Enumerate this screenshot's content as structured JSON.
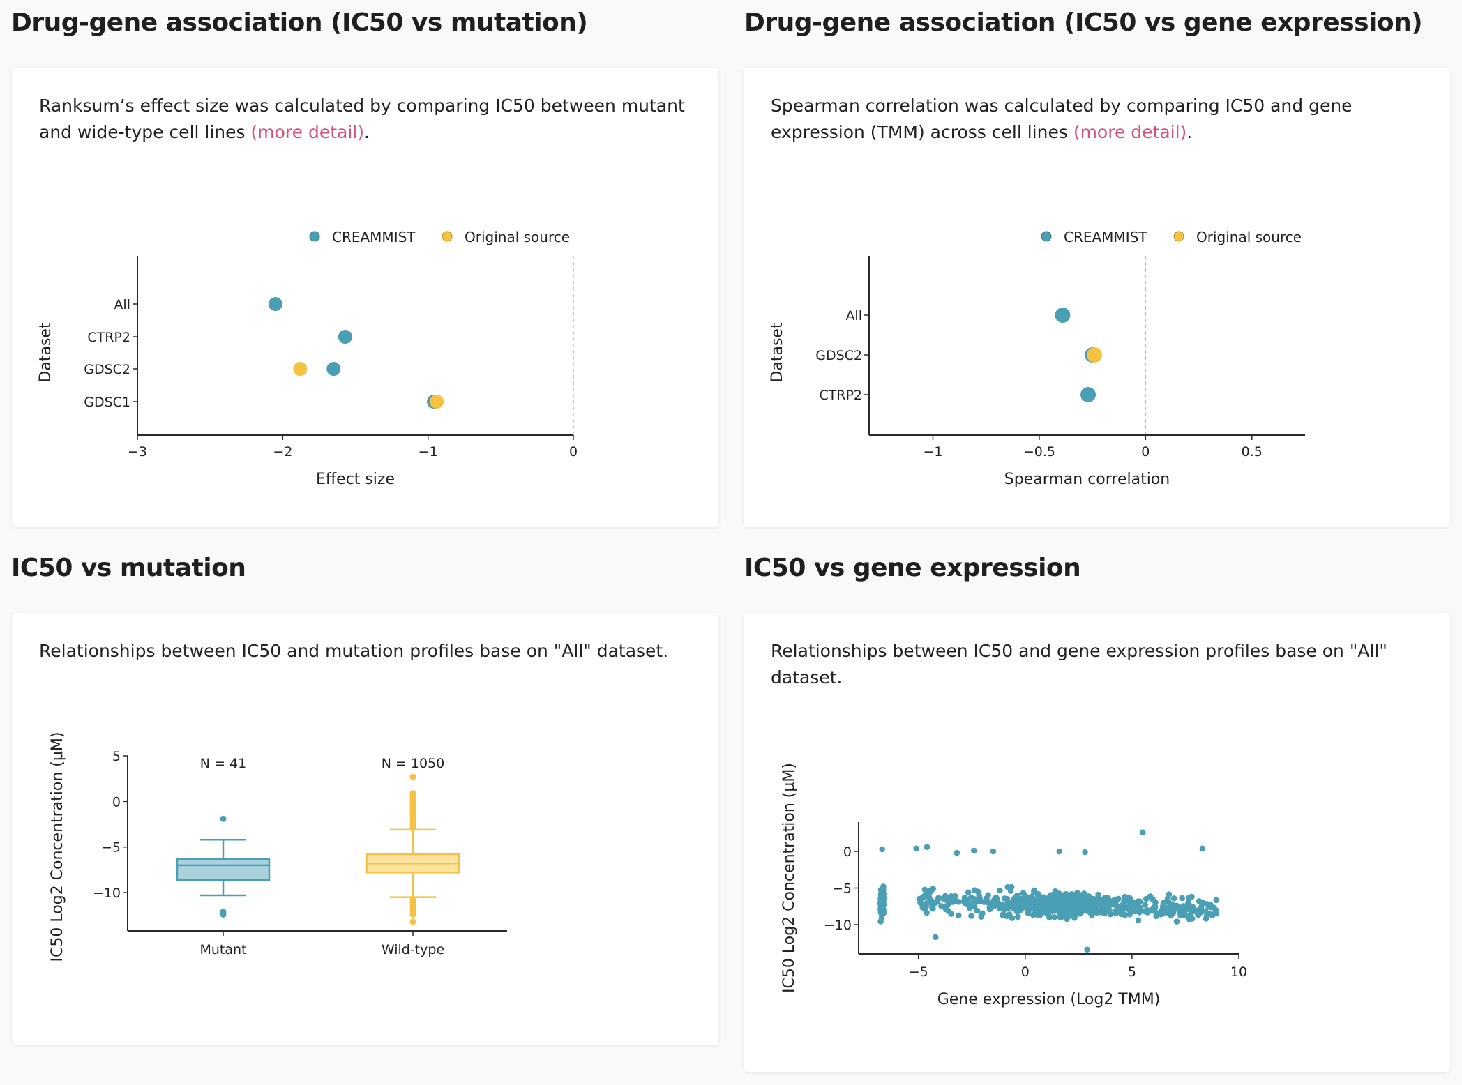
{
  "sections": {
    "tl_title": "Drug-gene association (IC50 vs mutation)",
    "tr_title": "Drug-gene association (IC50 vs gene expression)",
    "bl_title": "IC50 vs mutation",
    "br_title": "IC50 vs gene expression"
  },
  "descriptions": {
    "tl_text": "Ranksum’s effect size was calculated by comparing IC50 between mutant and wide-type cell lines ",
    "tl_link": "(more detail)",
    "tl_end": ".",
    "tr_text": "Spearman correlation was calculated by comparing IC50 and gene expression (TMM) across cell lines ",
    "tr_link": "(more detail)",
    "tr_end": ".",
    "bl_text": "Relationships between IC50 and mutation profiles base on \"All\" dataset.",
    "br_text": "Relationships between IC50 and gene expression profiles base on \"All\" dataset."
  },
  "colors": {
    "creammist": "#4a9fb5",
    "original": "#f5c242",
    "link": "#d9507a"
  },
  "chart_data": [
    {
      "id": "effect",
      "type": "scatter",
      "xlabel": "Effect size",
      "ylabel": "Dataset",
      "legend": [
        "CREAMMIST",
        "Original source"
      ],
      "categories": [
        "All",
        "CTRP2",
        "GDSC2",
        "GDSC1"
      ],
      "xlim": [
        -3,
        0
      ],
      "xticks": [
        -3,
        -2,
        -1,
        0
      ],
      "xtick_labels": [
        "−3",
        "−2",
        "−1",
        "0"
      ],
      "series": [
        {
          "name": "CREAMMIST",
          "points": [
            {
              "cat": "All",
              "x": -2.05
            },
            {
              "cat": "CTRP2",
              "x": -1.57
            },
            {
              "cat": "GDSC2",
              "x": -1.65
            },
            {
              "cat": "GDSC1",
              "x": -0.96
            }
          ]
        },
        {
          "name": "Original source",
          "points": [
            {
              "cat": "GDSC2",
              "x": -1.88
            },
            {
              "cat": "GDSC1",
              "x": -0.94
            }
          ]
        }
      ]
    },
    {
      "id": "spearman",
      "type": "scatter",
      "xlabel": "Spearman correlation",
      "ylabel": "Dataset",
      "legend": [
        "CREAMMIST",
        "Original source"
      ],
      "categories": [
        "All",
        "GDSC2",
        "CTRP2"
      ],
      "xlim": [
        -1.3,
        0.75
      ],
      "xticks": [
        -1,
        -0.5,
        0,
        0.5
      ],
      "xtick_labels": [
        "−1",
        "−0.5",
        "0",
        "0.5"
      ],
      "series": [
        {
          "name": "CREAMMIST",
          "points": [
            {
              "cat": "All",
              "x": -0.39
            },
            {
              "cat": "GDSC2",
              "x": -0.25
            },
            {
              "cat": "CTRP2",
              "x": -0.27
            }
          ]
        },
        {
          "name": "Original source",
          "points": [
            {
              "cat": "GDSC2",
              "x": -0.24
            }
          ]
        }
      ]
    },
    {
      "id": "boxplot",
      "type": "box",
      "ylabel": "IC50 Log2 Concentration (μM)",
      "ylim": [
        -14.2,
        5
      ],
      "yticks": [
        5,
        0,
        -5,
        -10
      ],
      "ytick_labels": [
        "5",
        "0",
        "−5",
        "−10"
      ],
      "boxes": [
        {
          "name": "Mutant",
          "n_label": "N = 41",
          "q1": -8.6,
          "median": -7.0,
          "q3": -6.3,
          "whisker_low": -10.3,
          "whisker_high": -4.2,
          "outliers": [
            -1.9,
            -12.1,
            -12.4
          ]
        },
        {
          "name": "Wild-type",
          "n_label": "N = 1050",
          "q1": -7.8,
          "median": -6.8,
          "q3": -5.8,
          "whisker_low": -10.5,
          "whisker_high": -3.1,
          "outliers": [
            2.7,
            0.9,
            0.7,
            0.5,
            0.3,
            0.1,
            -0.1,
            -0.3,
            -0.5,
            -0.7,
            -0.9,
            -1.1,
            -1.3,
            -1.5,
            -1.7,
            -2.0,
            -2.3,
            -2.6,
            -2.9,
            -10.8,
            -11.1,
            -11.4,
            -11.7,
            -12.0,
            -12.4,
            -13.2
          ]
        }
      ]
    },
    {
      "id": "expression",
      "type": "scatter",
      "xlabel": "Gene expression (Log2 TMM)",
      "ylabel": "IC50 Log2 Concentration (μM)",
      "xlim": [
        -7.8,
        10
      ],
      "ylim": [
        -14,
        4
      ],
      "xticks": [
        -5,
        0,
        5,
        10
      ],
      "xtick_labels": [
        "−5",
        "0",
        "5",
        "10"
      ],
      "yticks": [
        0,
        -5,
        -10
      ],
      "ytick_labels": [
        "0",
        "−5",
        "−10"
      ],
      "series": [
        {
          "name": "cell lines",
          "generated_points": 620,
          "seed": 7,
          "cluster_x": -6.7,
          "cluster_n": 70,
          "spread": {
            "x_min": -5,
            "x_max": 9,
            "y_center": -7.2,
            "y_slope": -0.08,
            "y_sd": 1.6
          },
          "extra_points": [
            [
              -6.7,
              0.3
            ],
            [
              -5.1,
              0.4
            ],
            [
              -4.6,
              0.6
            ],
            [
              -3.2,
              -0.2
            ],
            [
              -2.4,
              0.1
            ],
            [
              -1.5,
              0.0
            ],
            [
              1.6,
              0.0
            ],
            [
              2.8,
              -0.1
            ],
            [
              5.5,
              2.6
            ],
            [
              8.3,
              0.4
            ],
            [
              2.9,
              -13.4
            ],
            [
              -4.2,
              -11.7
            ]
          ]
        }
      ]
    }
  ]
}
